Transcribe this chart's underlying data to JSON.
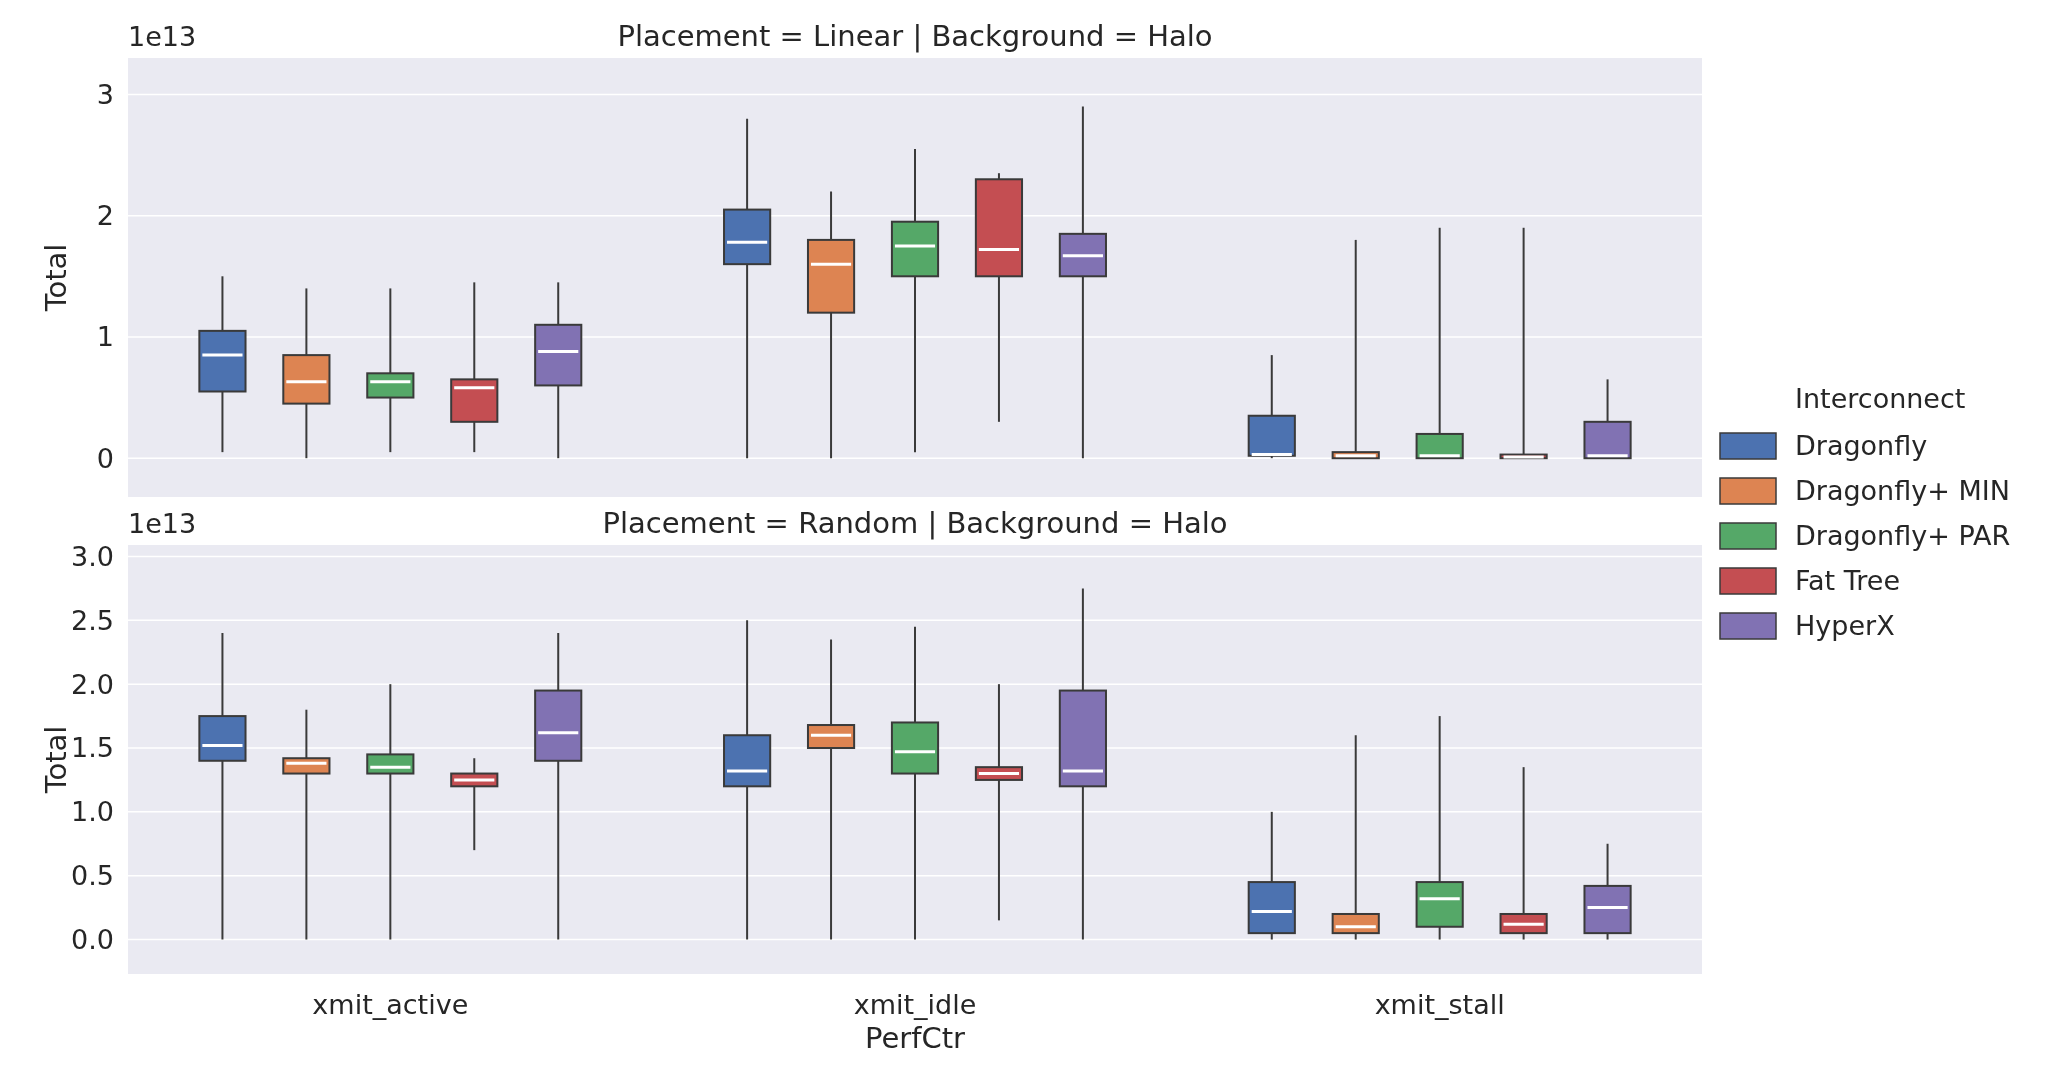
{
  "chart_data": [
    {
      "type": "box",
      "title": "Placement = Linear | Background = Halo",
      "ylabel": "Total",
      "annotations": [
        "1e13"
      ],
      "categories": [
        null,
        null,
        null
      ],
      "ylim": [
        -0.32,
        3.3
      ],
      "yticks": [
        0,
        1,
        2,
        3
      ],
      "grid": "y",
      "legend": "right",
      "legend_title": "Interconnect",
      "tick_labels": "y",
      "series": [
        {
          "name": "Dragonfly",
          "color": "#4c72b0",
          "boxes": [
            {
              "low": 0.05,
              "q1": 0.55,
              "median": 0.85,
              "q3": 1.05,
              "high": 1.5
            },
            {
              "low": 0.0,
              "q1": 1.6,
              "median": 1.78,
              "q3": 2.05,
              "high": 2.8
            },
            {
              "low": 0.0,
              "q1": 0.02,
              "median": 0.03,
              "q3": 0.35,
              "high": 0.85
            }
          ]
        },
        {
          "name": "Dragonfly+ MIN",
          "color": "#dd8452",
          "boxes": [
            {
              "low": 0.0,
              "q1": 0.45,
              "median": 0.63,
              "q3": 0.85,
              "high": 1.4
            },
            {
              "low": 0.0,
              "q1": 1.2,
              "median": 1.6,
              "q3": 1.8,
              "high": 2.2
            },
            {
              "low": 0.0,
              "q1": 0.0,
              "median": 0.02,
              "q3": 0.05,
              "high": 1.8
            }
          ]
        },
        {
          "name": "Dragonfly+ PAR",
          "color": "#55a868",
          "boxes": [
            {
              "low": 0.05,
              "q1": 0.5,
              "median": 0.63,
              "q3": 0.7,
              "high": 1.4
            },
            {
              "low": 0.05,
              "q1": 1.5,
              "median": 1.75,
              "q3": 1.95,
              "high": 2.55
            },
            {
              "low": 0.0,
              "q1": 0.0,
              "median": 0.02,
              "q3": 0.2,
              "high": 1.9
            }
          ]
        },
        {
          "name": "Fat Tree",
          "color": "#c44e52",
          "boxes": [
            {
              "low": 0.05,
              "q1": 0.3,
              "median": 0.58,
              "q3": 0.65,
              "high": 1.45
            },
            {
              "low": 0.3,
              "q1": 1.5,
              "median": 1.72,
              "q3": 2.3,
              "high": 2.35
            },
            {
              "low": 0.0,
              "q1": 0.0,
              "median": 0.01,
              "q3": 0.03,
              "high": 1.9
            }
          ]
        },
        {
          "name": "HyperX",
          "color": "#8172b3",
          "boxes": [
            {
              "low": 0.0,
              "q1": 0.6,
              "median": 0.88,
              "q3": 1.1,
              "high": 1.45
            },
            {
              "low": 0.0,
              "q1": 1.5,
              "median": 1.67,
              "q3": 1.85,
              "high": 2.9
            },
            {
              "low": 0.0,
              "q1": 0.0,
              "median": 0.02,
              "q3": 0.3,
              "high": 0.65
            }
          ]
        }
      ]
    },
    {
      "type": "box",
      "title": "Placement = Random | Background = Halo",
      "ylabel": "Total",
      "xlabel": "PerfCtr",
      "annotations": [
        "1e13"
      ],
      "categories": [
        "xmit_active",
        "xmit_idle",
        "xmit_stall"
      ],
      "ylim": [
        -0.27,
        3.09
      ],
      "yticks": [
        {
          "value": 0,
          "label": "0.0"
        },
        {
          "value": 0.5,
          "label": "0.5"
        },
        {
          "value": 1,
          "label": "1.0"
        },
        {
          "value": 1.5,
          "label": "1.5"
        },
        {
          "value": 2,
          "label": "2.0"
        },
        {
          "value": 2.5,
          "label": "2.5"
        },
        {
          "value": 3,
          "label": "3.0"
        }
      ],
      "grid": "y",
      "series": [
        {
          "color": "#4c72b0",
          "boxes": [
            {
              "low": 0.0,
              "q1": 1.4,
              "median": 1.52,
              "q3": 1.75,
              "high": 2.4
            },
            {
              "low": 0.0,
              "q1": 1.2,
              "median": 1.32,
              "q3": 1.6,
              "high": 2.5
            },
            {
              "low": 0.0,
              "q1": 0.05,
              "median": 0.22,
              "q3": 0.45,
              "high": 1.0
            }
          ]
        },
        {
          "color": "#dd8452",
          "boxes": [
            {
              "low": 0.0,
              "q1": 1.3,
              "median": 1.38,
              "q3": 1.42,
              "high": 1.8
            },
            {
              "low": 0.0,
              "q1": 1.5,
              "median": 1.6,
              "q3": 1.68,
              "high": 2.35
            },
            {
              "low": 0.0,
              "q1": 0.05,
              "median": 0.1,
              "q3": 0.2,
              "high": 1.6
            }
          ]
        },
        {
          "color": "#55a868",
          "boxes": [
            {
              "low": 0.0,
              "q1": 1.3,
              "median": 1.35,
              "q3": 1.45,
              "high": 2.0
            },
            {
              "low": 0.0,
              "q1": 1.3,
              "median": 1.47,
              "q3": 1.7,
              "high": 2.45
            },
            {
              "low": 0.0,
              "q1": 0.1,
              "median": 0.32,
              "q3": 0.45,
              "high": 1.75
            }
          ]
        },
        {
          "color": "#c44e52",
          "boxes": [
            {
              "low": 0.7,
              "q1": 1.2,
              "median": 1.25,
              "q3": 1.3,
              "high": 1.42
            },
            {
              "low": 0.15,
              "q1": 1.25,
              "median": 1.3,
              "q3": 1.35,
              "high": 2.0
            },
            {
              "low": 0.0,
              "q1": 0.05,
              "median": 0.12,
              "q3": 0.2,
              "high": 1.35
            }
          ]
        },
        {
          "color": "#8172b3",
          "boxes": [
            {
              "low": 0.0,
              "q1": 1.4,
              "median": 1.62,
              "q3": 1.95,
              "high": 2.4
            },
            {
              "low": 0.0,
              "q1": 1.2,
              "median": 1.32,
              "q3": 1.95,
              "high": 2.75
            },
            {
              "low": 0.0,
              "q1": 0.05,
              "median": 0.25,
              "q3": 0.42,
              "high": 0.75
            }
          ]
        }
      ]
    }
  ]
}
